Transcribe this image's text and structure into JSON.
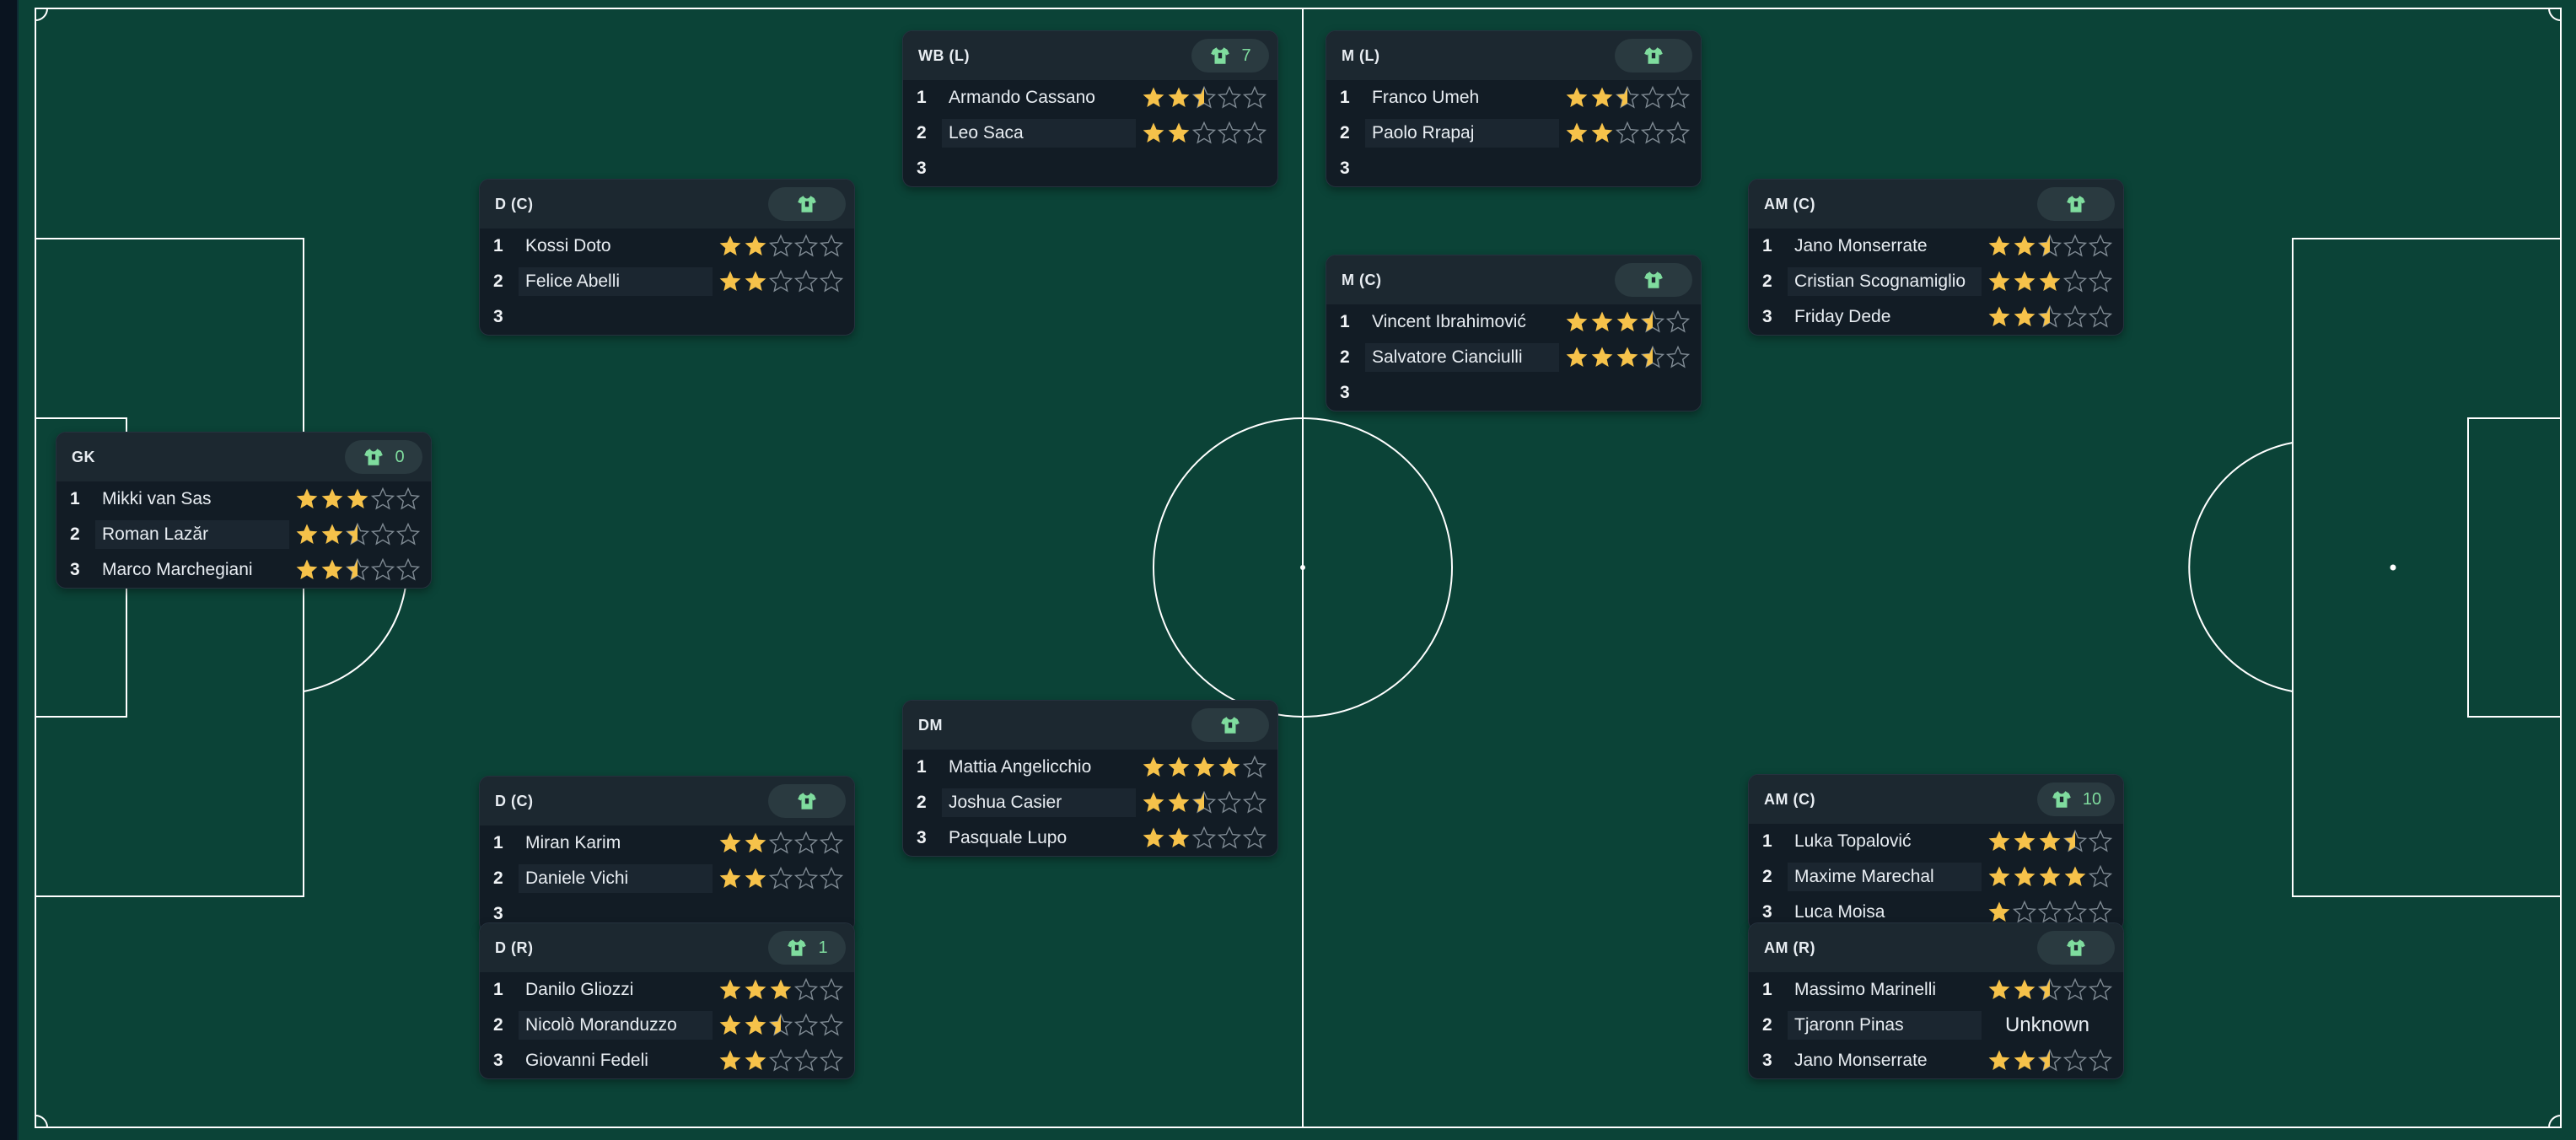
{
  "colors": {
    "pitch": "#0b4337",
    "lines": "#ffffff",
    "star_filled": "#f6c24a",
    "star_empty": "#7f8a93",
    "kit": "#7fdc9e"
  },
  "positions": [
    {
      "id": "gk",
      "label": "GK",
      "kit_number": "0",
      "players": [
        {
          "rank": "1",
          "name": "Mikki van Sas",
          "stars": 3
        },
        {
          "rank": "2",
          "name": "Roman Lazăr",
          "stars": 2.5
        },
        {
          "rank": "3",
          "name": "Marco Marchegiani",
          "stars": 2.5
        }
      ]
    },
    {
      "id": "dc-top",
      "label": "D (C)",
      "kit_number": "",
      "players": [
        {
          "rank": "1",
          "name": "Kossi Doto",
          "stars": 2
        },
        {
          "rank": "2",
          "name": "Felice Abelli",
          "stars": 2
        },
        {
          "rank": "3",
          "name": "",
          "stars": null
        }
      ]
    },
    {
      "id": "dc-bottom",
      "label": "D (C)",
      "kit_number": "",
      "players": [
        {
          "rank": "1",
          "name": "Miran Karim",
          "stars": 2
        },
        {
          "rank": "2",
          "name": "Daniele Vichi",
          "stars": 2
        },
        {
          "rank": "3",
          "name": "",
          "stars": null
        }
      ]
    },
    {
      "id": "dr",
      "label": "D (R)",
      "kit_number": "1",
      "players": [
        {
          "rank": "1",
          "name": "Danilo Gliozzi",
          "stars": 3
        },
        {
          "rank": "2",
          "name": "Nicolò Moranduzzo",
          "stars": 2.5
        },
        {
          "rank": "3",
          "name": "Giovanni Fedeli",
          "stars": 2
        }
      ]
    },
    {
      "id": "wbl",
      "label": "WB (L)",
      "kit_number": "7",
      "players": [
        {
          "rank": "1",
          "name": "Armando Cassano",
          "stars": 2.5
        },
        {
          "rank": "2",
          "name": "Leo Saca",
          "stars": 2
        },
        {
          "rank": "3",
          "name": "",
          "stars": null
        }
      ]
    },
    {
      "id": "dm",
      "label": "DM",
      "kit_number": "",
      "players": [
        {
          "rank": "1",
          "name": "Mattia Angelicchio",
          "stars": 4
        },
        {
          "rank": "2",
          "name": "Joshua Casier",
          "stars": 2.5
        },
        {
          "rank": "3",
          "name": "Pasquale Lupo",
          "stars": 2
        }
      ]
    },
    {
      "id": "ml",
      "label": "M (L)",
      "kit_number": "",
      "players": [
        {
          "rank": "1",
          "name": "Franco Umeh",
          "stars": 2.5
        },
        {
          "rank": "2",
          "name": "Paolo Rrapaj",
          "stars": 2
        },
        {
          "rank": "3",
          "name": "",
          "stars": null
        }
      ]
    },
    {
      "id": "mc",
      "label": "M (C)",
      "kit_number": "",
      "players": [
        {
          "rank": "1",
          "name": "Vincent Ibrahimović",
          "stars": 3.5
        },
        {
          "rank": "2",
          "name": "Salvatore Cianciulli",
          "stars": 3.5
        },
        {
          "rank": "3",
          "name": "",
          "stars": null
        }
      ]
    },
    {
      "id": "amc-top",
      "label": "AM (C)",
      "kit_number": "",
      "players": [
        {
          "rank": "1",
          "name": "Jano Monserrate",
          "stars": 2.5
        },
        {
          "rank": "2",
          "name": "Cristian Scognamiglio",
          "stars": 3
        },
        {
          "rank": "3",
          "name": "Friday Dede",
          "stars": 2.5
        }
      ]
    },
    {
      "id": "amc-bottom",
      "label": "AM (C)",
      "kit_number": "10",
      "players": [
        {
          "rank": "1",
          "name": "Luka Topalović",
          "stars": 3.5
        },
        {
          "rank": "2",
          "name": "Maxime Marechal",
          "stars": 4
        },
        {
          "rank": "3",
          "name": "Luca Moisa",
          "stars": 1
        }
      ]
    },
    {
      "id": "amr",
      "label": "AM (R)",
      "kit_number": "",
      "players": [
        {
          "rank": "1",
          "name": "Massimo Marinelli",
          "stars": 2.5
        },
        {
          "rank": "2",
          "name": "Tjaronn Pinas",
          "stars": null,
          "rating_text": "Unknown"
        },
        {
          "rank": "3",
          "name": "Jano Monserrate",
          "stars": 2.5
        }
      ]
    }
  ]
}
